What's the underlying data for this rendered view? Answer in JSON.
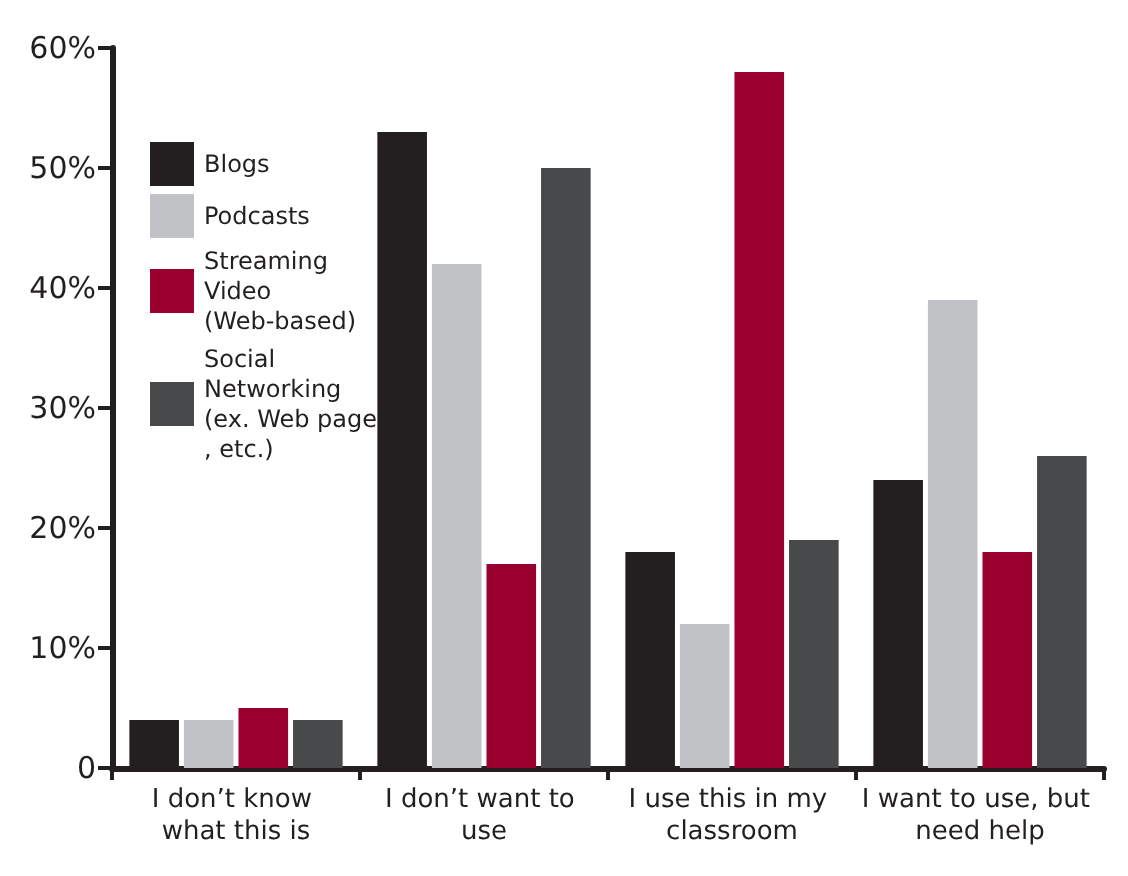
{
  "chart_data": {
    "type": "bar",
    "categories": [
      "I don’t know what this is",
      "I don’t want to use",
      "I use this in my classroom",
      "I want to use, but need help"
    ],
    "series": [
      {
        "name": "Blogs",
        "color": "#231f20",
        "values": [
          4,
          53,
          18,
          24
        ]
      },
      {
        "name": "Podcasts",
        "color": "#c1c2c6",
        "values": [
          4,
          42,
          12,
          39
        ]
      },
      {
        "name": "Streaming Video (Web-based)",
        "color": "#990030",
        "values": [
          5,
          17,
          58,
          18
        ]
      },
      {
        "name": "Social Networking (ex. Web page, etc.)",
        "color": "#48494b",
        "values": [
          4,
          50,
          19,
          26
        ]
      }
    ],
    "ylim": [
      0,
      60
    ],
    "yticks": [
      0,
      {
        "value": 10,
        "label": "10%"
      },
      {
        "value": 20,
        "label": "20%"
      },
      {
        "value": 30,
        "label": "30%"
      },
      {
        "value": 40,
        "label": "40%"
      },
      {
        "value": 50,
        "label": "50%"
      },
      {
        "value": 60,
        "label": "60%"
      }
    ],
    "grid": false,
    "legend": "top left"
  }
}
